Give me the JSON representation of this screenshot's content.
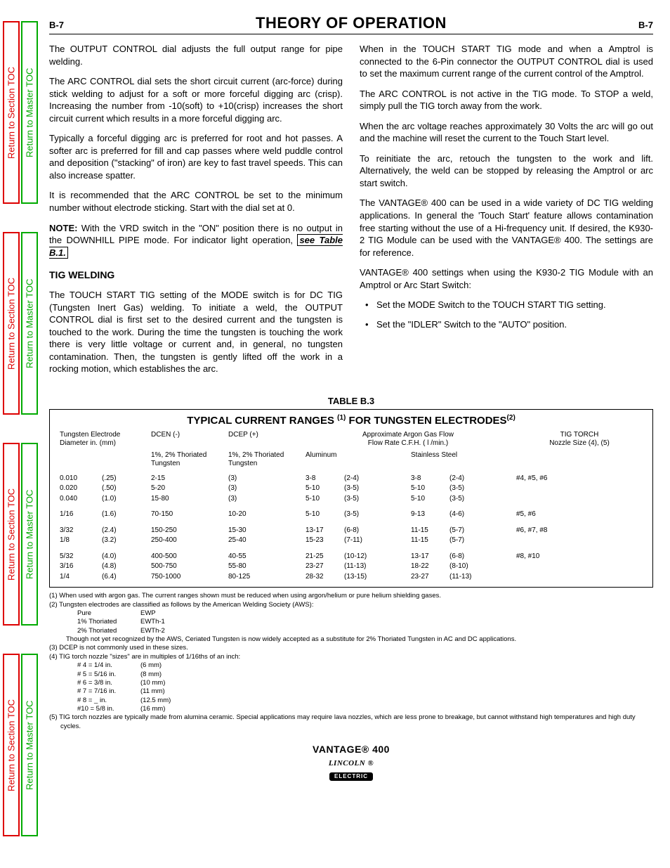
{
  "sidebar": {
    "red_label": "Return to Section TOC",
    "green_label": "Return to Master TOC",
    "tab_tops": [
      30,
      330,
      630,
      930
    ],
    "tab_height": 260,
    "colors": {
      "red": "#d00000",
      "green": "#00a000"
    }
  },
  "header": {
    "left": "B-7",
    "title": "THEORY OF OPERATION",
    "right": "B-7"
  },
  "left_col": {
    "p1": "The OUTPUT CONTROL dial adjusts the full output range for pipe welding.",
    "p2": "The ARC CONTROL dial sets the short circuit current (arc-force) during stick welding to adjust for a soft or more forceful digging arc (crisp). Increasing the number from -10(soft) to +10(crisp) increases the short circuit current which results in a more forceful digging arc.",
    "p3": "Typically a forceful digging arc is preferred for root and hot passes. A softer arc is preferred for fill and cap passes where weld puddle control and deposition (\"stacking\" of iron) are key to fast travel speeds. This can also increase spatter.",
    "p4": "It is recommended that the ARC CONTROL be set to the minimum number without electrode sticking. Start with the dial set at 0.",
    "note_label": "NOTE:",
    "note_body": " With the VRD switch in the \"ON\" position there is no output in the DOWNHILL PIPE mode. For indicator light operation, ",
    "note_link": "see Table B.1.",
    "h_tig": "TIG WELDING",
    "p5": "The TOUCH START TIG setting of the MODE switch is for DC TIG (Tungsten Inert Gas) welding. To initiate a weld, the OUTPUT CONTROL dial is first set to the desired current and the tungsten is touched to the work. During the time the tungsten is touching the work there is very little voltage or current and, in general, no tungsten contamination. Then, the tungsten is gently lifted off the work in a rocking motion, which establishes the arc."
  },
  "right_col": {
    "p1": "When in the TOUCH START TIG mode and when a Amptrol is connected to the 6-Pin connector the OUTPUT CONTROL dial is used to set the maximum current range of the current control of the Amptrol.",
    "p2": "The ARC CONTROL is not active in the TIG mode. To STOP a weld, simply pull the TIG torch away from the work.",
    "p3": "When the arc voltage reaches approximately 30 Volts the arc will go out and the machine will reset the current to the Touch Start level.",
    "p4": "To reinitiate the arc, retouch the tungsten to the work and lift. Alternatively, the weld can be stopped by releasing the Amptrol or arc start switch.",
    "p5": "The VANTAGE® 400 can be used in a wide variety of DC TIG welding applications. In general the 'Touch Start' feature allows contamination free starting without the use of a Hi-frequency unit. If desired, the K930-2 TIG Module can be used with the VANTAGE® 400. The settings are for reference.",
    "p6": "VANTAGE® 400 settings when using the K930-2 TIG Module with an Amptrol or Arc Start  Switch:",
    "bullets": [
      "Set the MODE Switch to the TOUCH START TIG setting.",
      "Set the \"IDLER\" Switch to the \"AUTO\" position."
    ]
  },
  "table": {
    "caption": "TABLE B.3",
    "title_a": "TYPICAL CURRENT RANGES ",
    "title_sup1": "(1)",
    "title_b": " FOR TUNGSTEN ELECTRODES",
    "title_sup2": "(2)",
    "hdr": {
      "col1a": "Tungsten Electrode",
      "col1b": "Diameter in. (mm)",
      "col2": "DCEN (-)",
      "col3": "DCEP (+)",
      "col4a": "Approximate Argon Gas Flow",
      "col4b": "Flow Rate C.F.H. ( l /min.)",
      "col5a": "TIG TORCH",
      "col5b": "Nozzle Size (4), (5)"
    },
    "sub": {
      "s2": "1%, 2% Thoriated Tungsten",
      "s3": "1%, 2% Thoriated Tungsten",
      "s4": "Aluminum",
      "s5": "Stainless Steel"
    },
    "rows": [
      {
        "dia_in": "0.010",
        "dia_mm": "(.25)",
        "dcen": "2-15",
        "dcep": "(3)",
        "al_cfh": "3-8",
        "al_lm": "(2-4)",
        "ss_cfh": "3-8",
        "ss_lm": "(2-4)",
        "nozzle": "#4, #5, #6"
      },
      {
        "dia_in": "0.020",
        "dia_mm": "(.50)",
        "dcen": "5-20",
        "dcep": "(3)",
        "al_cfh": "5-10",
        "al_lm": "(3-5)",
        "ss_cfh": "5-10",
        "ss_lm": "(3-5)",
        "nozzle": ""
      },
      {
        "dia_in": "0.040",
        "dia_mm": "(1.0)",
        "dcen": "15-80",
        "dcep": "(3)",
        "al_cfh": "5-10",
        "al_lm": "(3-5)",
        "ss_cfh": "5-10",
        "ss_lm": "(3-5)",
        "nozzle": ""
      },
      {
        "spacer": true
      },
      {
        "dia_in": "1/16",
        "dia_mm": "(1.6)",
        "dcen": "70-150",
        "dcep": "10-20",
        "al_cfh": "5-10",
        "al_lm": "(3-5)",
        "ss_cfh": "9-13",
        "ss_lm": "(4-6)",
        "nozzle": "#5, #6"
      },
      {
        "spacer": true
      },
      {
        "dia_in": "3/32",
        "dia_mm": "(2.4)",
        "dcen": "150-250",
        "dcep": "15-30",
        "al_cfh": "13-17",
        "al_lm": "(6-8)",
        "ss_cfh": "11-15",
        "ss_lm": "(5-7)",
        "nozzle": "#6, #7, #8"
      },
      {
        "dia_in": "1/8",
        "dia_mm": "(3.2)",
        "dcen": "250-400",
        "dcep": "25-40",
        "al_cfh": "15-23",
        "al_lm": "(7-11)",
        "ss_cfh": "11-15",
        "ss_lm": "(5-7)",
        "nozzle": ""
      },
      {
        "spacer": true
      },
      {
        "dia_in": "5/32",
        "dia_mm": "(4.0)",
        "dcen": "400-500",
        "dcep": "40-55",
        "al_cfh": "21-25",
        "al_lm": "(10-12)",
        "ss_cfh": "13-17",
        "ss_lm": "(6-8)",
        "nozzle": "#8, #10"
      },
      {
        "dia_in": "3/16",
        "dia_mm": "(4.8)",
        "dcen": "500-750",
        "dcep": "55-80",
        "al_cfh": "23-27",
        "al_lm": "(11-13)",
        "ss_cfh": "18-22",
        "ss_lm": "(8-10)",
        "nozzle": ""
      },
      {
        "dia_in": "1/4",
        "dia_mm": "(6.4)",
        "dcen": "750-1000",
        "dcep": "80-125",
        "al_cfh": "28-32",
        "al_lm": "(13-15)",
        "ss_cfh": "23-27",
        "ss_lm": "(11-13)",
        "nozzle": ""
      }
    ]
  },
  "footnotes": {
    "n1": "(1)  When used with argon gas.  The current ranges shown must be reduced when using argon/helium or pure helium shielding gases.",
    "n2": "(2) Tungsten electrodes are classified as follows by the American Welding Society (AWS):",
    "n2_rows": [
      {
        "a": "Pure",
        "b": "EWP"
      },
      {
        "a": "1% Thoriated",
        "b": "EWTh-1"
      },
      {
        "a": "2% Thoriated",
        "b": "EWTh-2"
      }
    ],
    "n2_tail": "Though not yet recognized by the AWS, Ceriated Tungsten is now widely accepted as a substitute for 2% Thoriated Tungsten in AC and DC applications.",
    "n3": "(3)  DCEP is not commonly used in these sizes.",
    "n4": "(4)  TIG torch nozzle \"sizes\" are in multiples of 1/16ths of an inch:",
    "n4_rows": [
      {
        "a": "# 4 = 1/4 in.",
        "b": "(6 mm)"
      },
      {
        "a": "# 5 = 5/16 in.",
        "b": "(8 mm)"
      },
      {
        "a": "# 6 = 3/8 in.",
        "b": "(10 mm)"
      },
      {
        "a": "# 7 = 7/16 in.",
        "b": "(11 mm)"
      },
      {
        "a": "# 8 = _ in.",
        "b": "(12.5 mm)"
      },
      {
        "a": "#10 = 5/8 in.",
        "b": "(16 mm)"
      }
    ],
    "n5": "(5) TIG torch nozzles are typically made from alumina ceramic.  Special applications may require lava nozzles, which are less prone to breakage, but cannot withstand high temperatures and high duty cycles."
  },
  "footer": {
    "model": "VANTAGE® 400",
    "logo_top": "LINCOLN ®",
    "logo_bottom": "ELECTRIC"
  }
}
